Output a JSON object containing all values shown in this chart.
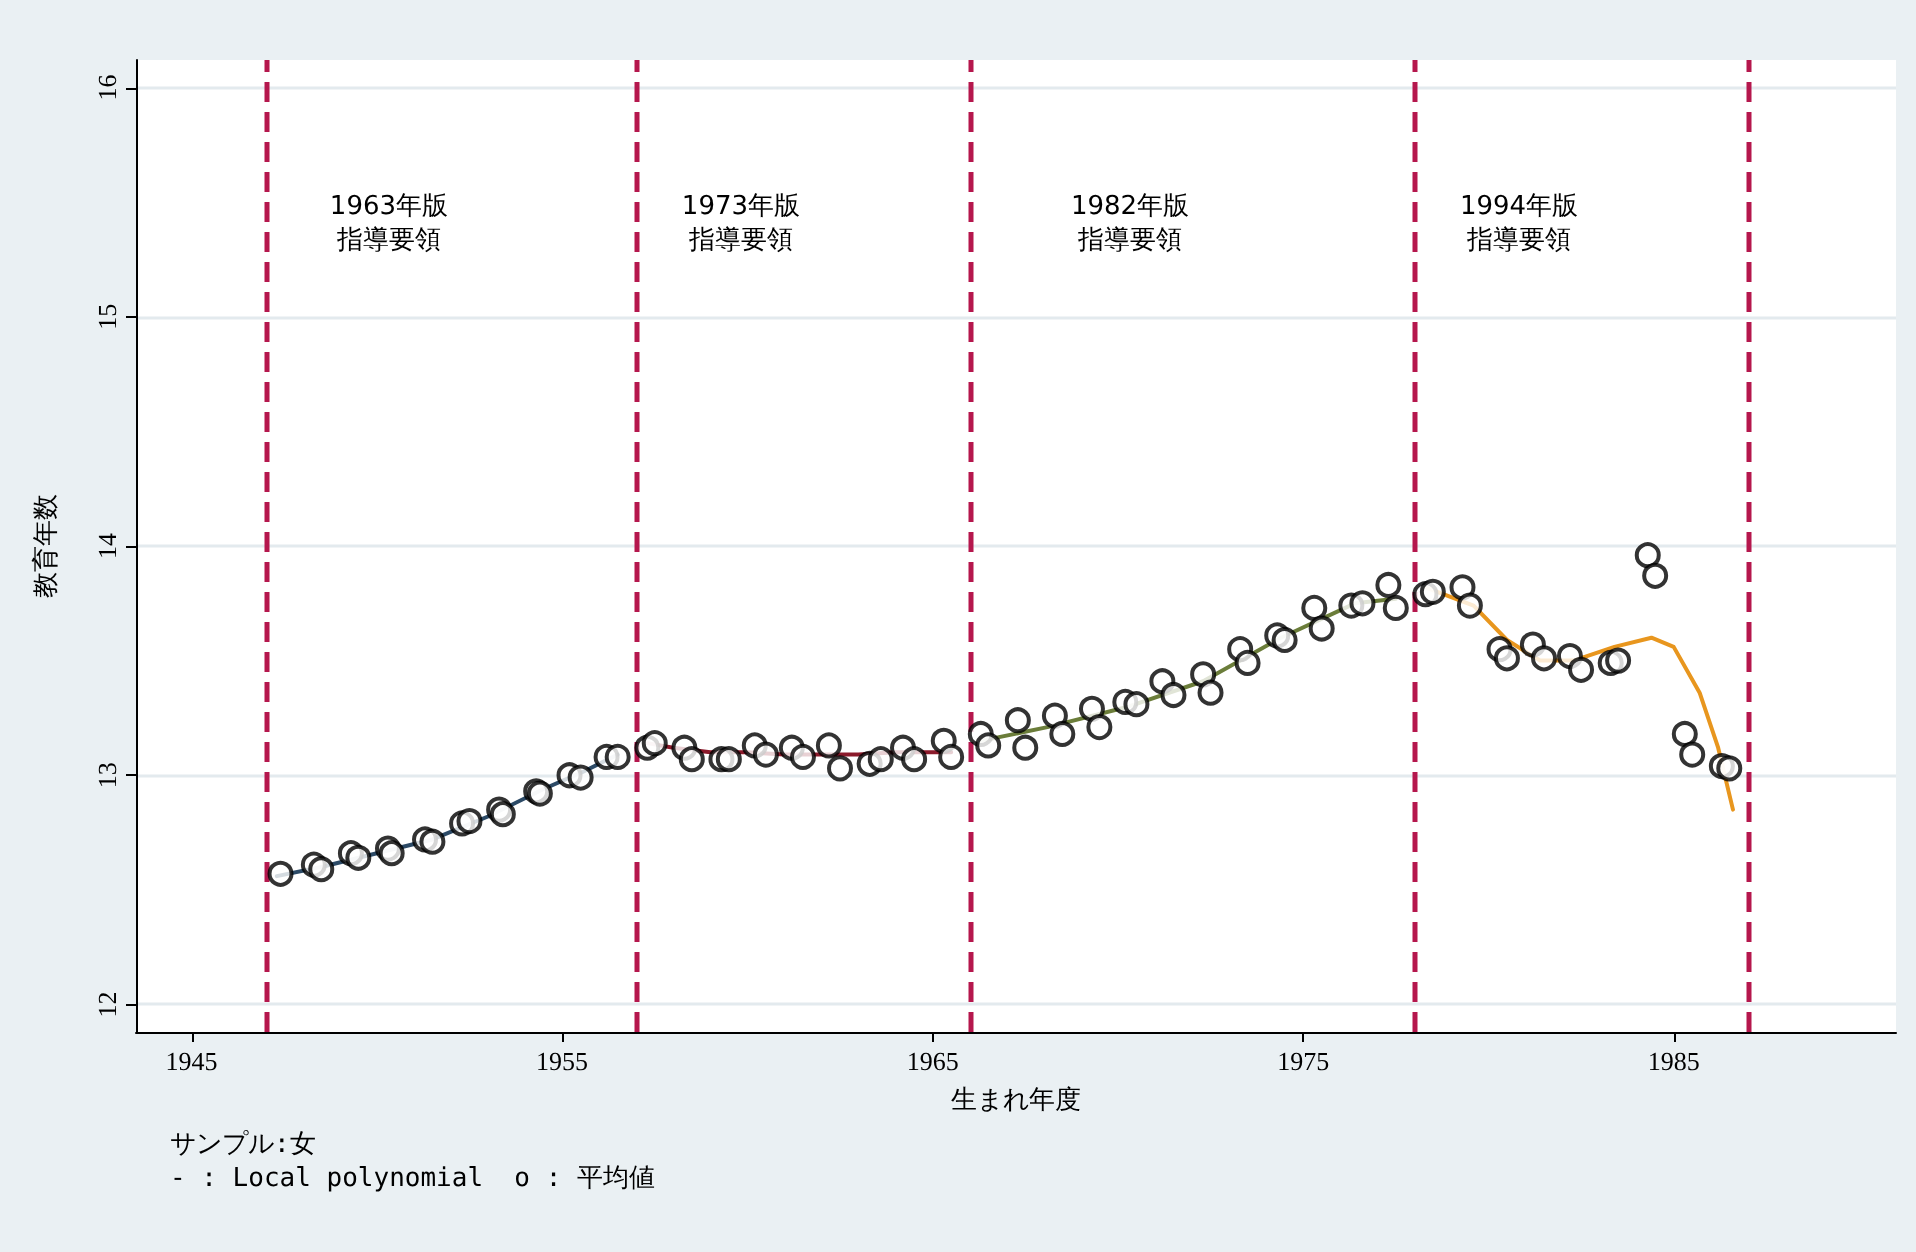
{
  "chart_data": {
    "type": "scatter",
    "xlabel": "生まれ年度",
    "ylabel": "教育年数",
    "xlim": [
      1943.5,
      1991
    ],
    "xticks": [
      1945,
      1955,
      1965,
      1975,
      1985
    ],
    "ylim": [
      11.88,
      16.12
    ],
    "yticks": [
      12,
      13,
      14,
      15,
      16
    ],
    "grid": "y",
    "ref_lines": [
      {
        "axis": "x",
        "value": 1947,
        "color": "#b5174d",
        "line_style": "dashed"
      },
      {
        "axis": "x",
        "value": 1957,
        "color": "#b5174d",
        "line_style": "dashed"
      },
      {
        "axis": "x",
        "value": 1966,
        "color": "#b5174d",
        "line_style": "dashed"
      },
      {
        "axis": "x",
        "value": 1978,
        "color": "#b5174d",
        "line_style": "dashed"
      },
      {
        "axis": "x",
        "value": 1987,
        "color": "#b5174d",
        "line_style": "dashed"
      }
    ],
    "annotations": [
      "1963年版指導要領",
      "1973年版指導要領",
      "1982年版指導要領",
      "1994年版指導要領",
      "サンプル:女",
      "- : Local polynomial  o : 平均値"
    ],
    "series": [
      {
        "type": "line",
        "marker": "none",
        "color": "#2c4a66",
        "x": [
          1947.3,
          1948.5,
          1950,
          1951.5,
          1953,
          1954.5,
          1955.5,
          1956.5
        ],
        "values": [
          12.56,
          12.6,
          12.66,
          12.72,
          12.82,
          12.94,
          13.01,
          13.09
        ]
      },
      {
        "type": "line",
        "marker": "none",
        "color": "#8b1a2b",
        "x": [
          1957.3,
          1958,
          1959,
          1960,
          1961,
          1962,
          1963,
          1964,
          1965,
          1965.5
        ],
        "values": [
          13.14,
          13.12,
          13.1,
          13.1,
          13.09,
          13.09,
          13.09,
          13.1,
          13.1,
          13.1
        ]
      },
      {
        "type": "line",
        "marker": "none",
        "color": "#6b7d3a",
        "x": [
          1966.3,
          1968.1,
          1970.3,
          1972.3,
          1974.4,
          1976.4,
          1977.5
        ],
        "values": [
          13.15,
          13.21,
          13.3,
          13.41,
          13.6,
          13.75,
          13.77
        ]
      },
      {
        "type": "line",
        "marker": "none",
        "color": "#e8961e",
        "x": [
          1978.3,
          1979.6,
          1980.5,
          1981.4,
          1982.3,
          1983.4,
          1984.4,
          1985,
          1985.7,
          1986.2,
          1986.6
        ],
        "values": [
          13.82,
          13.74,
          13.59,
          13.5,
          13.5,
          13.56,
          13.6,
          13.56,
          13.36,
          13.12,
          12.85
        ]
      },
      {
        "marker": "circle",
        "color": "#000000",
        "x": [
          1947.4,
          1948.3,
          1948.5,
          1949.3,
          1949.5,
          1950.3,
          1950.4,
          1951.3,
          1951.5,
          1952.3,
          1952.5,
          1953.3,
          1953.4,
          1954.3,
          1954.4,
          1955.2,
          1955.5,
          1956.2,
          1956.5,
          1957.3,
          1957.5,
          1958.3,
          1958.5,
          1959.3,
          1959.5,
          1960.2,
          1960.5,
          1961.2,
          1961.5,
          1962.2,
          1962.5,
          1963.3,
          1963.6,
          1964.2,
          1964.5,
          1965.3,
          1965.5,
          1966.3,
          1966.5,
          1967.3,
          1967.5,
          1968.3,
          1968.5,
          1969.3,
          1969.5,
          1970.2,
          1970.5,
          1971.2,
          1971.5,
          1972.3,
          1972.5,
          1973.3,
          1973.5,
          1974.3,
          1974.5,
          1975.3,
          1975.5,
          1976.3,
          1976.6,
          1977.3,
          1977.5,
          1978.3,
          1978.5,
          1979.3,
          1979.5,
          1980.3,
          1980.5,
          1981.2,
          1981.5,
          1982.2,
          1982.5,
          1983.3,
          1983.5,
          1984.3,
          1984.5,
          1985.3,
          1985.5,
          1986.3,
          1986.5
        ],
        "values": [
          12.57,
          12.61,
          12.59,
          12.66,
          12.64,
          12.68,
          12.66,
          12.72,
          12.71,
          12.79,
          12.8,
          12.85,
          12.83,
          12.93,
          12.92,
          13.0,
          12.99,
          13.08,
          13.08,
          13.12,
          13.14,
          13.12,
          13.07,
          13.07,
          13.07,
          13.13,
          13.09,
          13.12,
          13.08,
          13.13,
          13.03,
          13.05,
          13.07,
          13.12,
          13.07,
          13.15,
          13.08,
          13.18,
          13.13,
          13.24,
          13.12,
          13.26,
          13.18,
          13.29,
          13.21,
          13.32,
          13.31,
          13.41,
          13.35,
          13.44,
          13.36,
          13.55,
          13.49,
          13.61,
          13.59,
          13.73,
          13.64,
          13.74,
          13.75,
          13.83,
          13.73,
          13.79,
          13.8,
          13.82,
          13.74,
          13.55,
          13.51,
          13.57,
          13.51,
          13.52,
          13.46,
          13.49,
          13.5,
          13.96,
          13.87,
          13.18,
          13.09,
          13.04,
          13.03
        ]
      }
    ]
  }
}
